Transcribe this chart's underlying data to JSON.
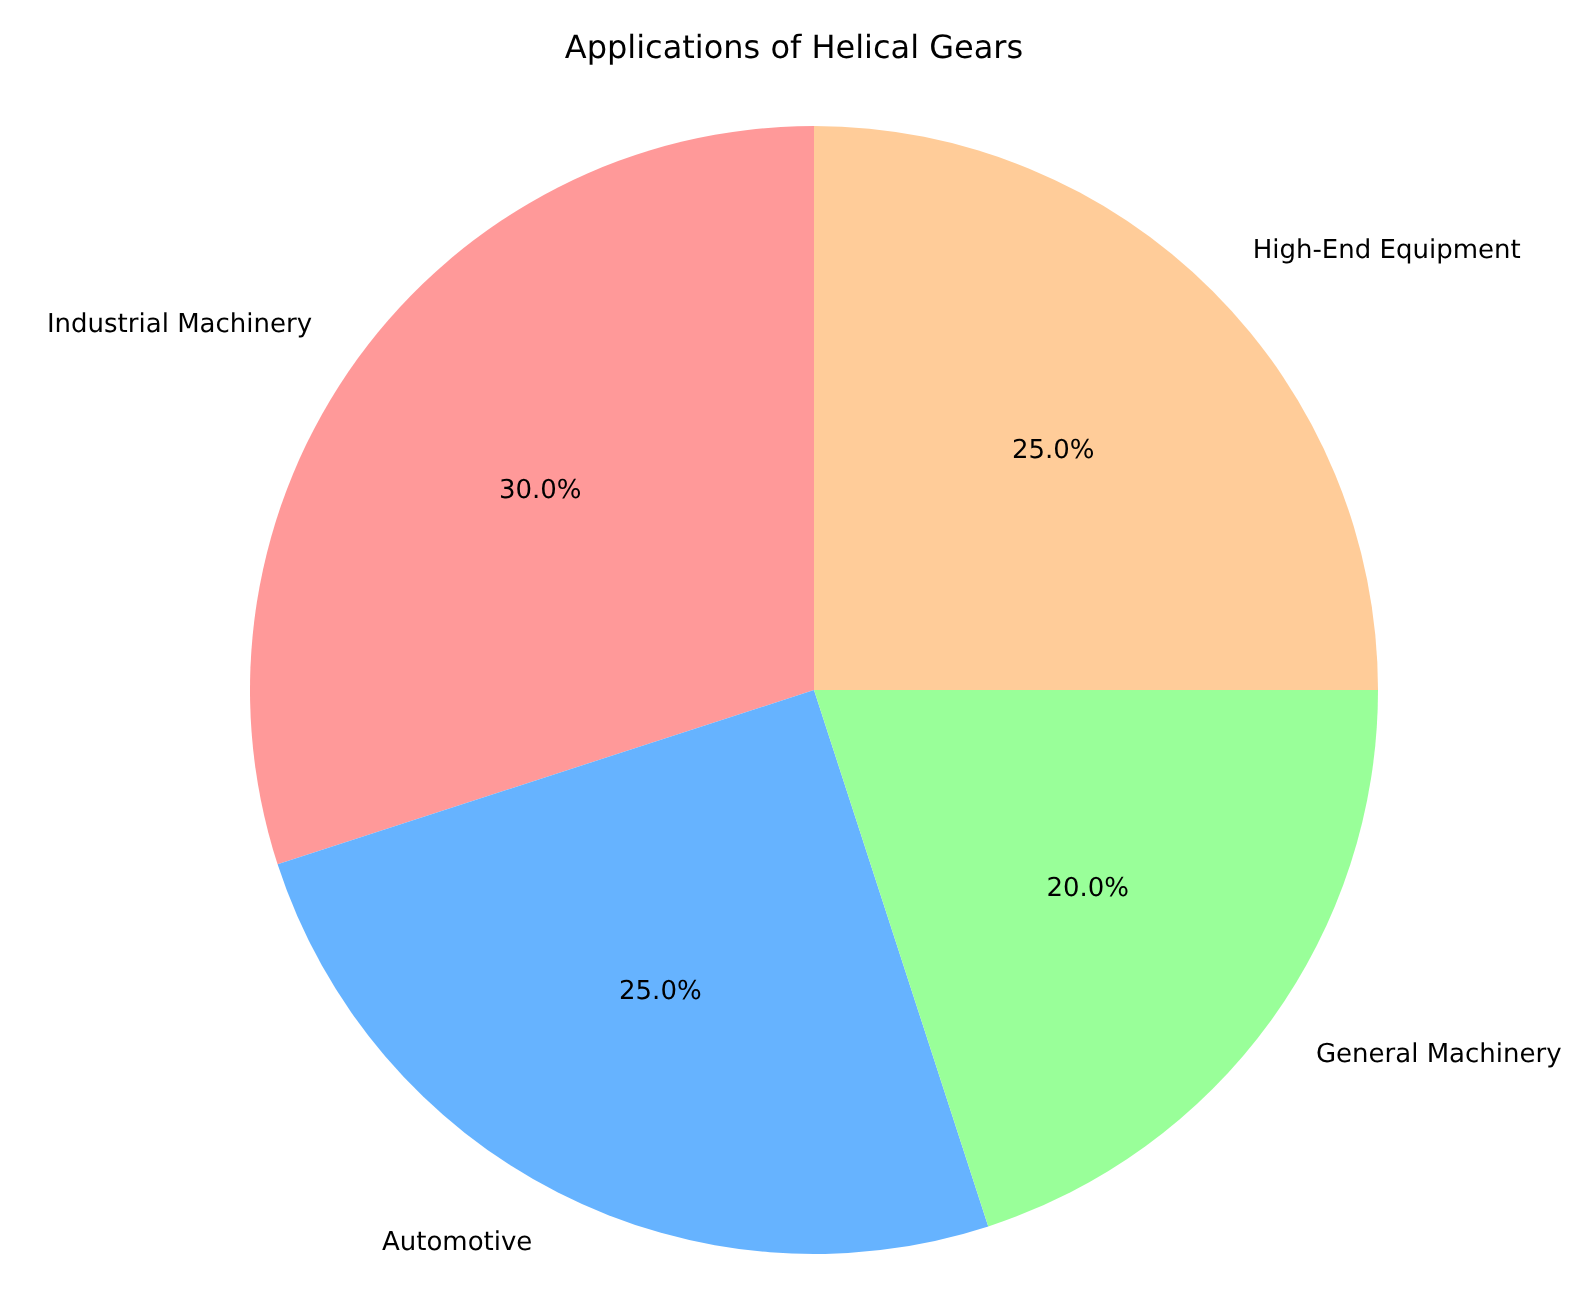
{
  "chart_data": {
    "type": "pie",
    "title": "Applications of Helical Gears",
    "categories": [
      "Industrial Machinery",
      "Automotive",
      "General Machinery",
      "High-End Equipment"
    ],
    "values": [
      30,
      25,
      20,
      25
    ],
    "colors": [
      "#ff9999",
      "#66b3ff",
      "#99ff99",
      "#ffcc99"
    ],
    "value_labels": [
      "30.0%",
      "25.0%",
      "20.0%",
      "25.0%"
    ]
  }
}
